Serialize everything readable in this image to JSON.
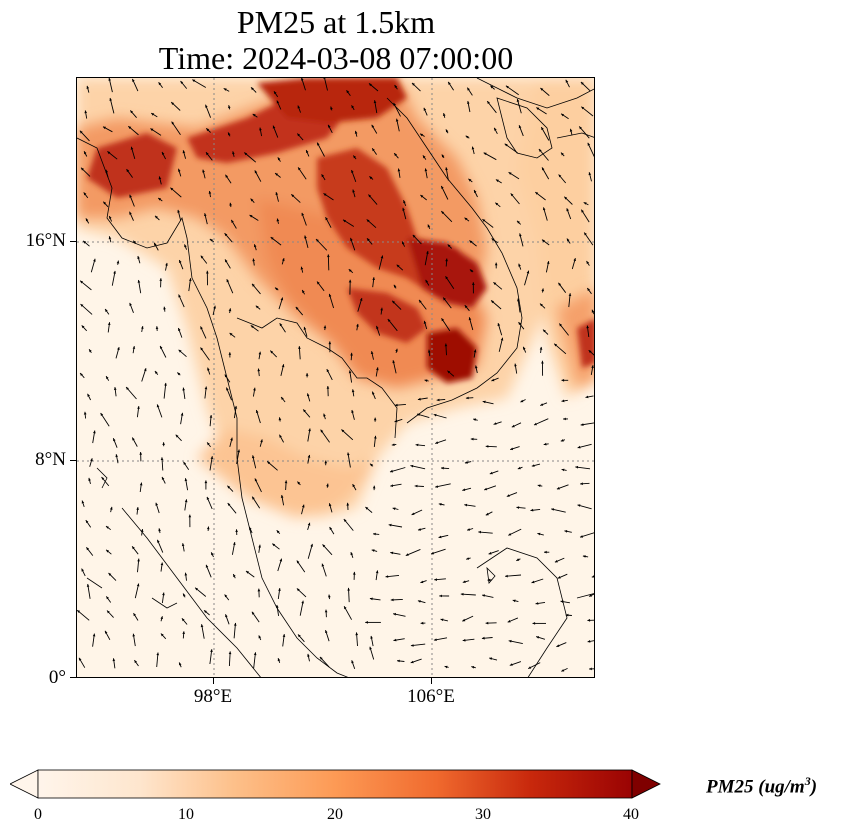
{
  "title": {
    "line1": "PM25 at 1.5km",
    "line2": "Time: 2024-03-08 07:00:00"
  },
  "map": {
    "projection": "PlateCarree",
    "extent": {
      "lon_min": 93,
      "lon_max": 112,
      "lat_min": 0,
      "lat_max": 22
    },
    "gridlines": {
      "style": "dotted",
      "color": "#888888"
    },
    "y_ticks": [
      {
        "label": "16°N",
        "lat": 16
      },
      {
        "label": "8°N",
        "lat": 8
      },
      {
        "label": "0°",
        "lat": 0
      }
    ],
    "x_ticks": [
      {
        "label": "98°E",
        "lon": 98
      },
      {
        "label": "106°E",
        "lon": 106
      }
    ],
    "field_variable": "PM25",
    "wind_vectors": "black arrows"
  },
  "colorbar": {
    "title": "PM25 (ug/m",
    "title_sup": "3",
    "title_close": ")",
    "colormap": [
      "#fff5eb",
      "#fdd9b5",
      "#fdab70",
      "#f3733a",
      "#d84a1d",
      "#a31203",
      "#7f0000"
    ],
    "min": 0,
    "max": 40,
    "extend": "both",
    "ticks": [
      {
        "label": "0",
        "value": 0
      },
      {
        "label": "10",
        "value": 10
      },
      {
        "label": "20",
        "value": 20
      },
      {
        "label": "30",
        "value": 30
      },
      {
        "label": "40",
        "value": 40
      }
    ]
  }
}
